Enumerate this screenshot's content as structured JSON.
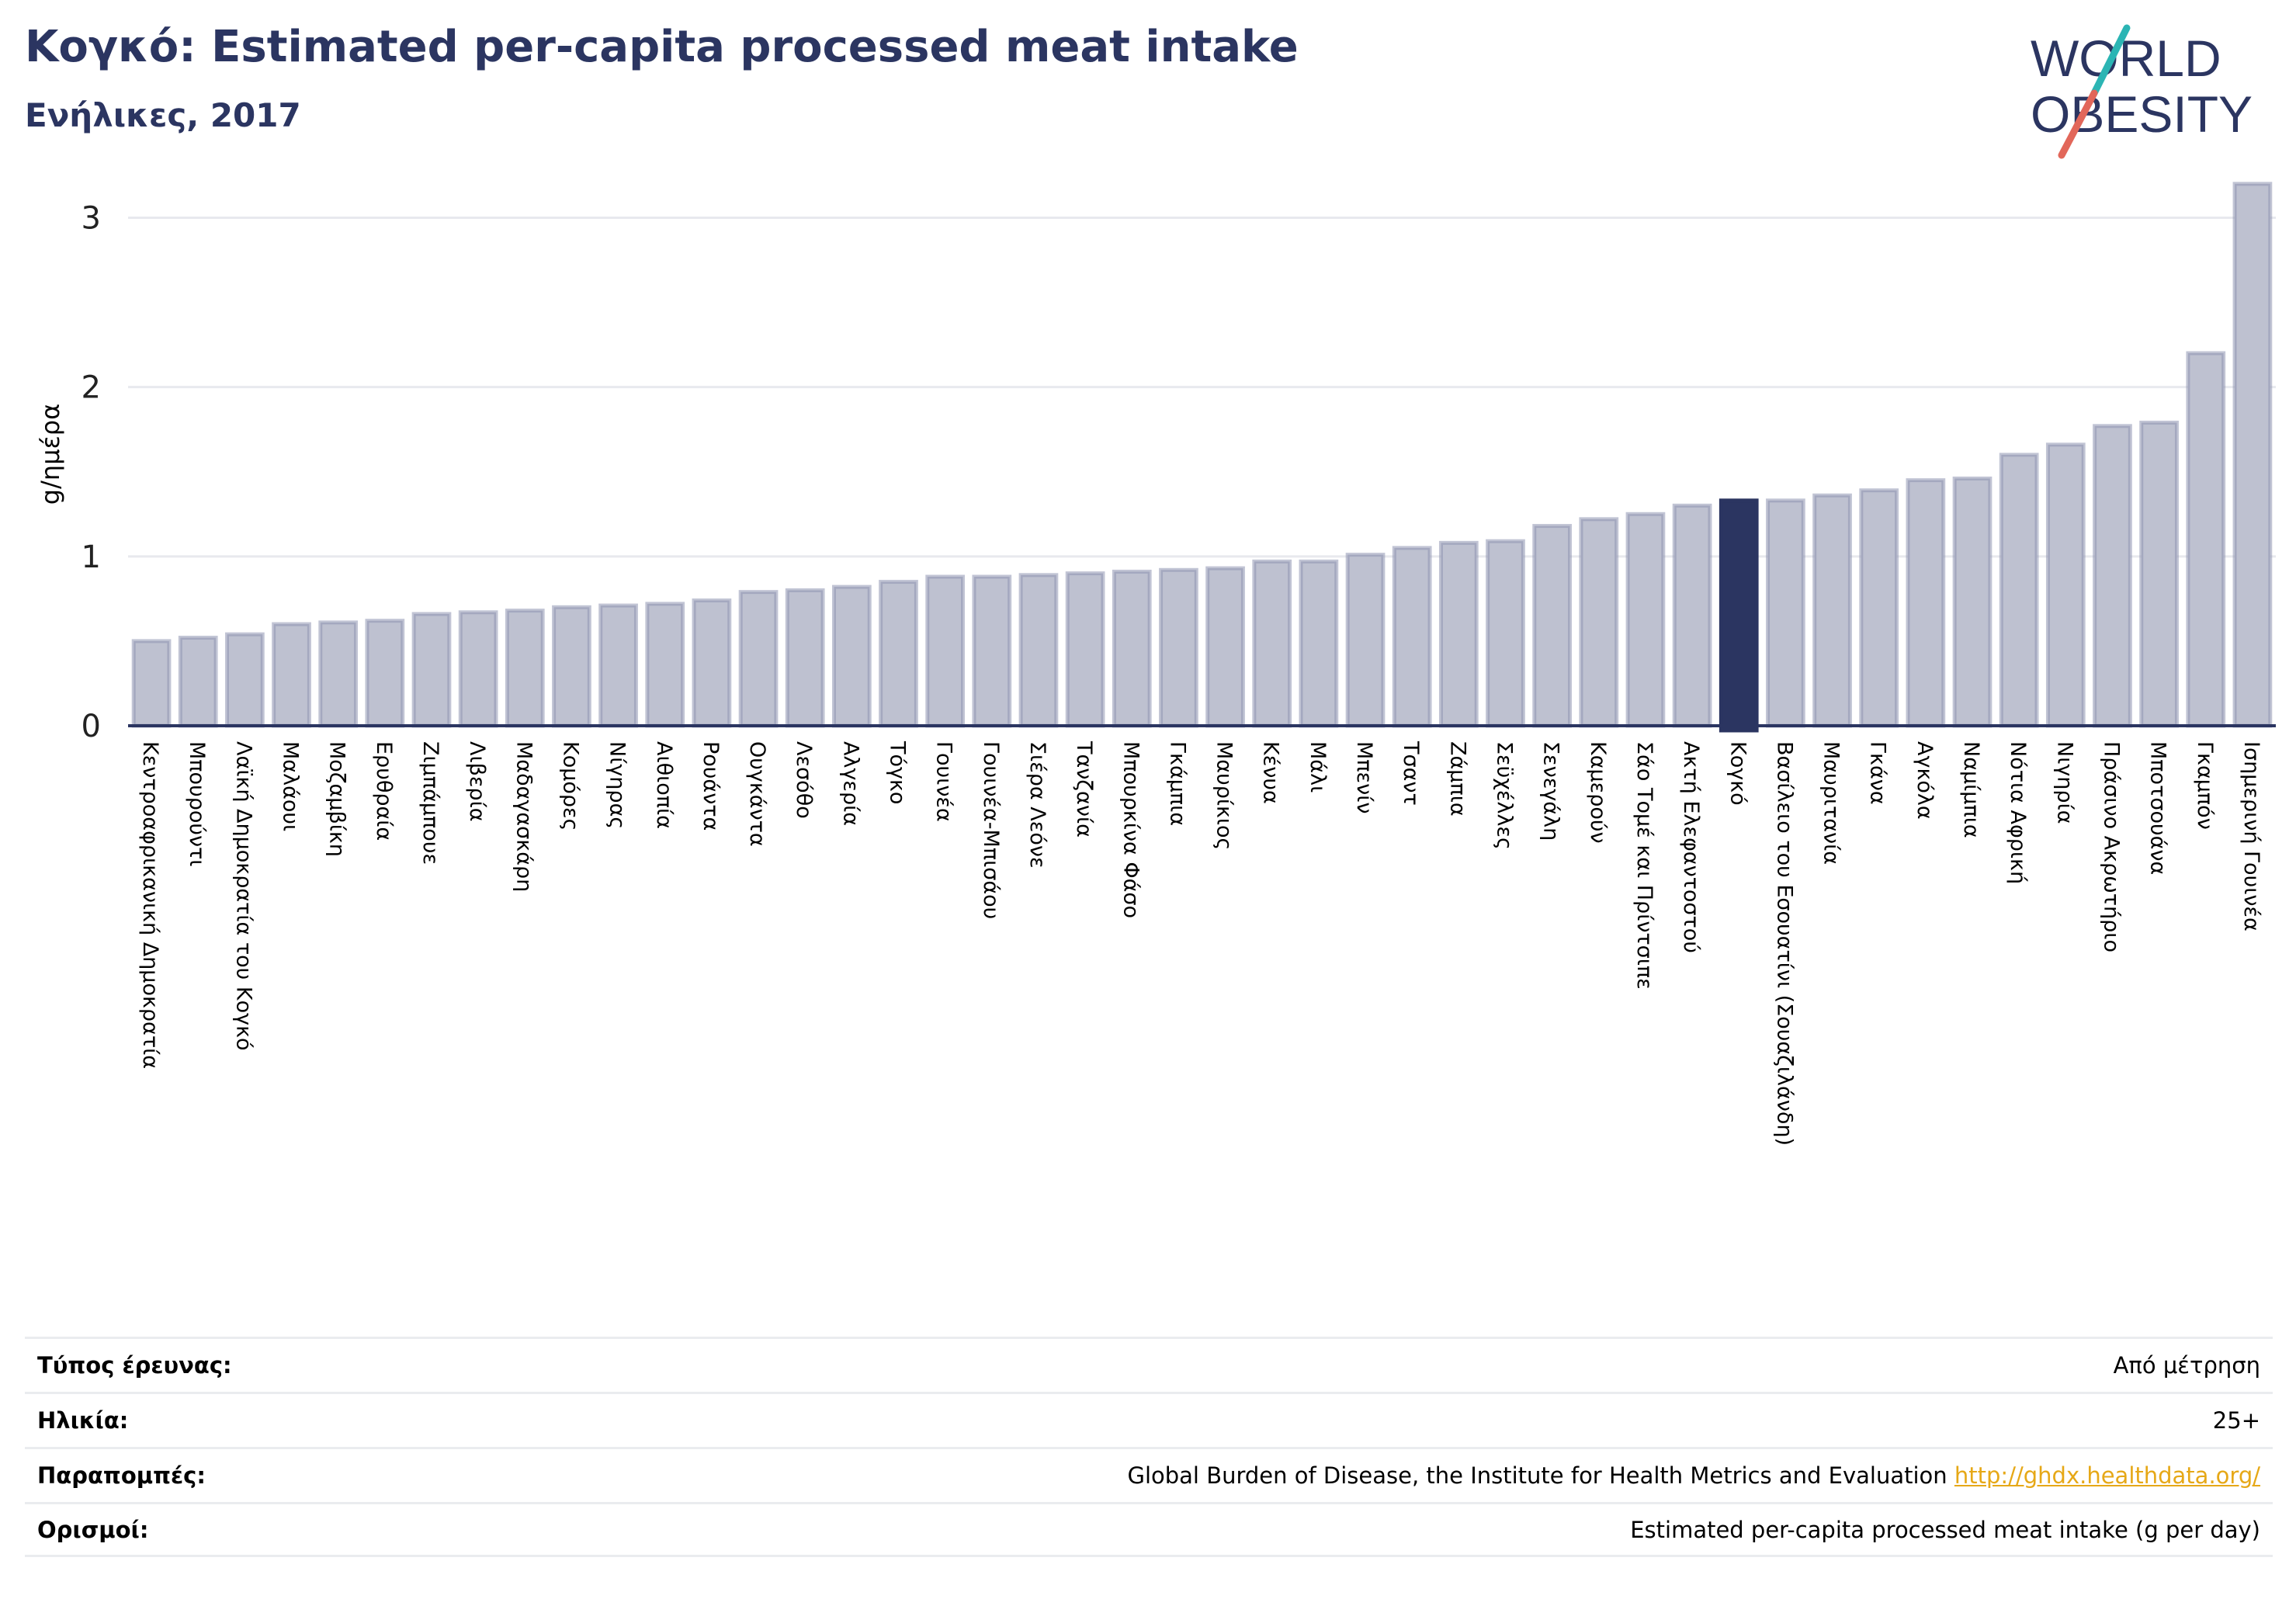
{
  "header": {
    "title": "Κογκό: Estimated per-capita processed meat intake",
    "subtitle": "Ενήλικες, 2017"
  },
  "logo": {
    "line1": "WORLD",
    "line2": "OBESITY",
    "colors": {
      "text": "#2b3561",
      "slash_teal": "#2bb5b4",
      "slash_red": "#e2675a"
    }
  },
  "colors": {
    "bar": "#bec1d0",
    "bar_stroke": "#8e94b0",
    "highlight": "#2b3561",
    "grid": "#e8e9ee",
    "axis": "#2b3561"
  },
  "chart_data": {
    "type": "bar",
    "ylabel": "g/ημέρα",
    "ylim": [
      0,
      3.3
    ],
    "yticks": [
      0,
      1,
      2,
      3
    ],
    "highlight": "Κογκό",
    "categories": [
      "Κεντροαφρικανική Δημοκρατία",
      "Μπουρούντι",
      "Λαϊκή Δημοκρατία του Κογκό",
      "Μαλάουι",
      "Μοζαμβίκη",
      "Ερυθραία",
      "Ζιμπάμπουε",
      "Λιβερία",
      "Μαδαγασκάρη",
      "Κομόρες",
      "Νίγηρας",
      "Αιθιοπία",
      "Ρουάντα",
      "Ουγκάντα",
      "Λεσόθο",
      "Αλγερία",
      "Τόγκο",
      "Γουινέα",
      "Γουινέα-Μπισάου",
      "Σιέρα Λεόνε",
      "Τανζανία",
      "Μπουρκίνα Φάσο",
      "Γκάμπια",
      "Μαυρίκιος",
      "Κένυα",
      "Μάλι",
      "Μπενίν",
      "Τσαντ",
      "Ζάμπια",
      "Σεϋχέλλες",
      "Σενεγάλη",
      "Καμερούν",
      "Σάο Τομέ και Πρίντσιπε",
      "Ακτή Ελεφαντοστού",
      "Κογκό",
      "Βασίλειο του Εσουατίνι (Σουαζιλάνδη)",
      "Μαυριτανία",
      "Γκάνα",
      "Αγκόλα",
      "Ναμίμπια",
      "Νότια Αφρική",
      "Νιγηρία",
      "Πράσινο Ακρωτήριο",
      "Μποτσουάνα",
      "Γκαμπόν",
      "Ισημερινή Γουινέα"
    ],
    "values": [
      0.5,
      0.52,
      0.54,
      0.6,
      0.61,
      0.62,
      0.66,
      0.67,
      0.68,
      0.7,
      0.71,
      0.72,
      0.74,
      0.79,
      0.8,
      0.82,
      0.85,
      0.88,
      0.88,
      0.89,
      0.9,
      0.91,
      0.92,
      0.93,
      0.97,
      0.97,
      1.01,
      1.05,
      1.08,
      1.09,
      1.18,
      1.22,
      1.25,
      1.3,
      1.33,
      1.33,
      1.36,
      1.39,
      1.45,
      1.46,
      1.6,
      1.66,
      1.77,
      1.79,
      2.2,
      3.2
    ]
  },
  "meta": [
    {
      "label": "Τύπος έρευνας:",
      "value": "Από μέτρηση"
    },
    {
      "label": "Ηλικία:",
      "value": "25+"
    },
    {
      "label": "Παραπομπές:",
      "value": "Global Burden of Disease, the Institute for Health Metrics and Evaluation",
      "link": "http://ghdx.healthdata.org/"
    },
    {
      "label": "Ορισμοί:",
      "value": "Estimated per-capita processed meat intake (g per day)"
    }
  ]
}
